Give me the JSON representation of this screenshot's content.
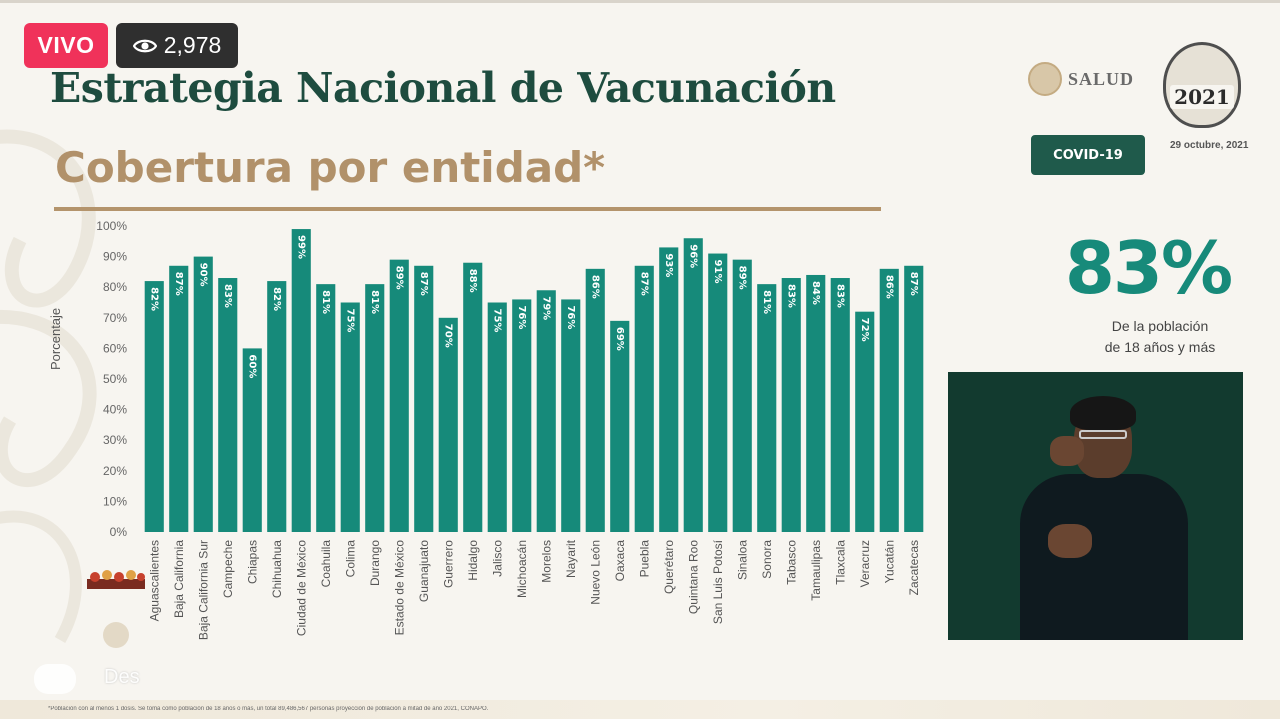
{
  "live": {
    "label": "VIVO",
    "viewers": "2,978",
    "viewer_icon": "eye-icon"
  },
  "header": {
    "title": "Estrategia Nacional de Vacunación",
    "subtitle": "Cobertura por entidad*",
    "salud_label": "SALUD",
    "seal_year": "2021",
    "covid_label": "COVID-19",
    "date": "29 octubre, 2021"
  },
  "summary": {
    "value": "83%",
    "caption_line1": "De la población",
    "caption_line2": "de 18 años y más"
  },
  "overlay": {
    "text": "Des"
  },
  "footnote": "*Población con al menos 1 dosis. Se toma como población de 18 años o más, un total 89,486,567 personas proyección de población a mitad de año 2021, CONAPO.",
  "colors": {
    "bar": "#168a7a",
    "title": "#1e4c3f",
    "subtitle": "#b1916a",
    "live": "#f0325a"
  },
  "chart_data": {
    "type": "bar",
    "ylabel": "Porcentaje",
    "ylim": [
      0,
      100
    ],
    "yticks": [
      "0%",
      "10%",
      "20%",
      "30%",
      "40%",
      "50%",
      "60%",
      "70%",
      "80%",
      "90%",
      "100%"
    ],
    "grid": false,
    "categories": [
      "Aguascalientes",
      "Baja California",
      "Baja California Sur",
      "Campeche",
      "Chiapas",
      "Chihuahua",
      "Ciudad de México",
      "Coahuila",
      "Colima",
      "Durango",
      "Estado de México",
      "Guanajuato",
      "Guerrero",
      "Hidalgo",
      "Jalisco",
      "Michoacán",
      "Morelos",
      "Nayarit",
      "Nuevo León",
      "Oaxaca",
      "Puebla",
      "Querétaro",
      "Quintana Roo",
      "San Luis Potosí",
      "Sinaloa",
      "Sonora",
      "Tabasco",
      "Tamaulipas",
      "Tlaxcala",
      "Veracruz",
      "Yucatán",
      "Zacatecas"
    ],
    "values": [
      82,
      87,
      90,
      83,
      60,
      82,
      99,
      81,
      75,
      81,
      89,
      87,
      70,
      88,
      75,
      76,
      79,
      76,
      86,
      69,
      87,
      93,
      96,
      91,
      89,
      81,
      83,
      84,
      83,
      72,
      86,
      87
    ],
    "labels": [
      "82%",
      "87%",
      "90%",
      "83%",
      "60%",
      "82%",
      "99%",
      "81%",
      "75%",
      "81%",
      "89%",
      "87%",
      "70%",
      "88%",
      "75%",
      "76%",
      "79%",
      "76%",
      "86%",
      "69%",
      "87%",
      "93%",
      "96%",
      "91%",
      "89%",
      "81%",
      "83%",
      "84%",
      "83%",
      "72%",
      "86%",
      "87%"
    ]
  }
}
